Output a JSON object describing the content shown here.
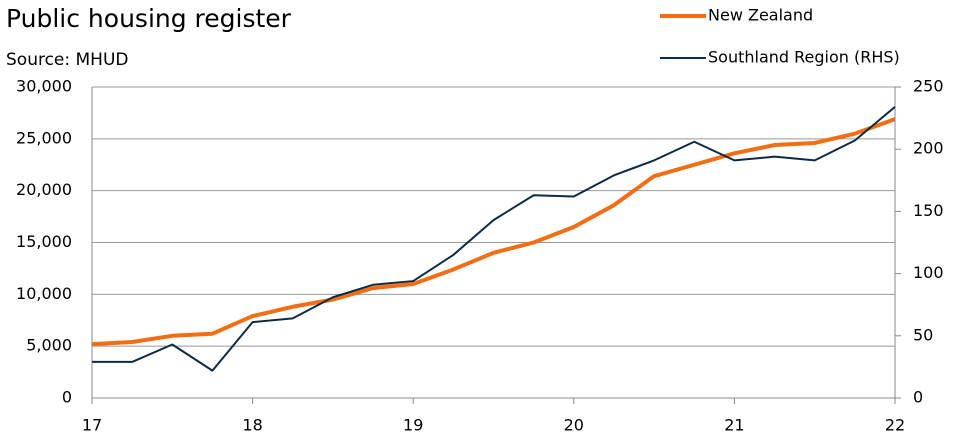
{
  "chart_data": {
    "type": "line",
    "title": "Public housing register",
    "subtitle": "Source: MHUD",
    "x": [
      17,
      17.25,
      17.5,
      17.75,
      18,
      18.25,
      18.5,
      18.75,
      19,
      19.25,
      19.5,
      19.75,
      20,
      20.25,
      20.5,
      20.75,
      21,
      21.25,
      21.5,
      21.75,
      22
    ],
    "series": [
      {
        "name": "New Zealand",
        "color": "#f26d13",
        "values": [
          5200,
          5400,
          6000,
          6200,
          7900,
          8800,
          9500,
          10600,
          11000,
          12400,
          14000,
          15000,
          16500,
          18600,
          21400,
          22500,
          23600,
          24400,
          24600,
          25500,
          26900
        ]
      },
      {
        "name": "Southland Region (RHS)",
        "color": "#0d2b45",
        "axis": "y2",
        "values": [
          29,
          29,
          43,
          22,
          61,
          64,
          81,
          91,
          94,
          115,
          143,
          163,
          162,
          179,
          191,
          206,
          191,
          194,
          191,
          207,
          234
        ]
      }
    ],
    "xlim": [
      17,
      22
    ],
    "xticks": [
      17,
      18,
      19,
      20,
      21,
      22
    ],
    "ylim": [
      0,
      30000
    ],
    "yticks": [
      0,
      {
        "value": 5000,
        "label": "5,000"
      },
      {
        "value": 10000,
        "label": "10,000"
      },
      {
        "value": 15000,
        "label": "15,000"
      },
      {
        "value": 20000,
        "label": "20,000"
      },
      {
        "value": 25000,
        "label": "25,000"
      },
      {
        "value": 30000,
        "label": "30,000"
      }
    ],
    "y2lim": [
      0,
      250
    ],
    "y2ticks": [
      0,
      50,
      100,
      150,
      200,
      250
    ],
    "grid": true,
    "legend": "top-right"
  }
}
